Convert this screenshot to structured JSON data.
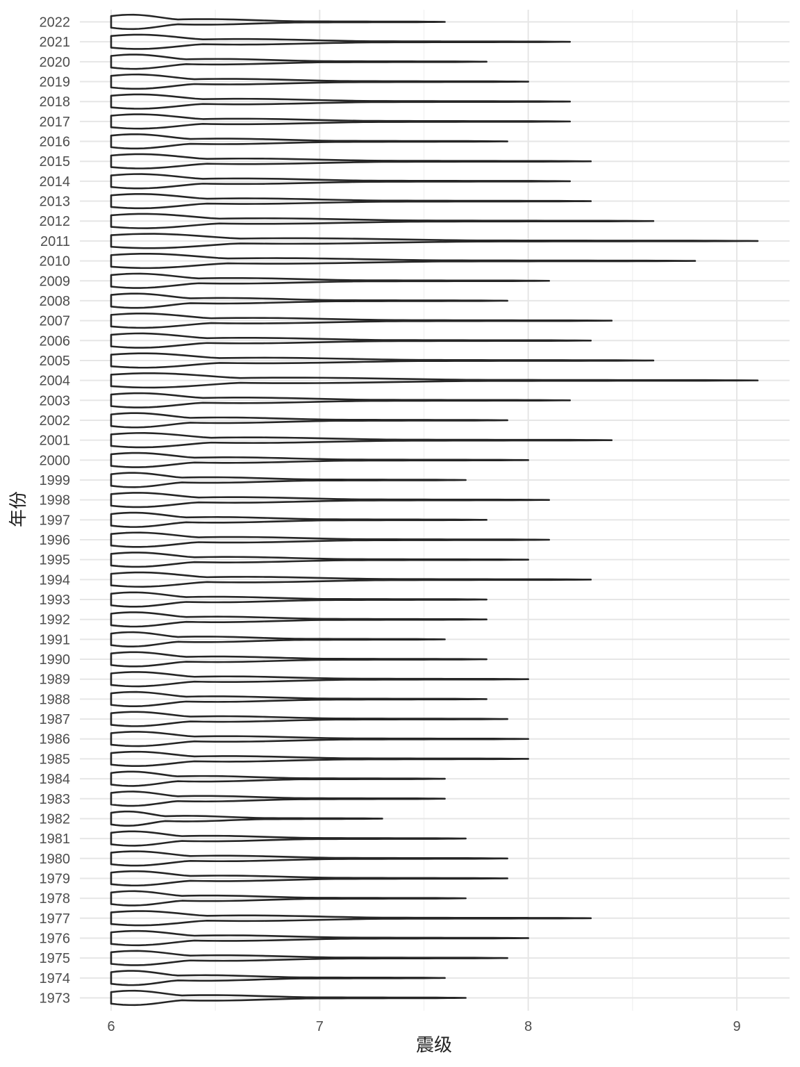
{
  "chart_data": {
    "type": "violin",
    "title": "",
    "xlabel": "震级",
    "ylabel": "年份",
    "xlim": [
      6,
      9.25
    ],
    "x_ticks": [
      "6",
      "7",
      "8",
      "9"
    ],
    "x_minor": [
      6.5,
      7.5,
      8.5
    ],
    "orientation": "horizontal",
    "categories": [
      "1973",
      "1974",
      "1975",
      "1976",
      "1977",
      "1978",
      "1979",
      "1980",
      "1981",
      "1982",
      "1983",
      "1984",
      "1985",
      "1986",
      "1987",
      "1988",
      "1989",
      "1990",
      "1991",
      "1992",
      "1993",
      "1994",
      "1995",
      "1996",
      "1997",
      "1998",
      "1999",
      "2000",
      "2001",
      "2002",
      "2003",
      "2004",
      "2005",
      "2006",
      "2007",
      "2008",
      "2009",
      "2010",
      "2011",
      "2012",
      "2013",
      "2014",
      "2015",
      "2016",
      "2017",
      "2018",
      "2019",
      "2020",
      "2021",
      "2022"
    ],
    "max_values": [
      7.7,
      7.6,
      7.9,
      8.0,
      8.3,
      7.7,
      7.9,
      7.9,
      7.7,
      7.3,
      7.6,
      7.6,
      8.0,
      8.0,
      7.9,
      7.8,
      8.0,
      7.8,
      7.6,
      7.8,
      7.8,
      8.3,
      8.0,
      8.1,
      7.8,
      8.1,
      7.7,
      8.0,
      8.4,
      7.9,
      8.2,
      9.1,
      8.6,
      8.3,
      8.4,
      7.9,
      8.1,
      8.8,
      9.1,
      8.6,
      8.3,
      8.2,
      8.3,
      7.9,
      8.2,
      8.2,
      8.0,
      7.8,
      8.2,
      7.6
    ],
    "min_value": 6.0
  }
}
